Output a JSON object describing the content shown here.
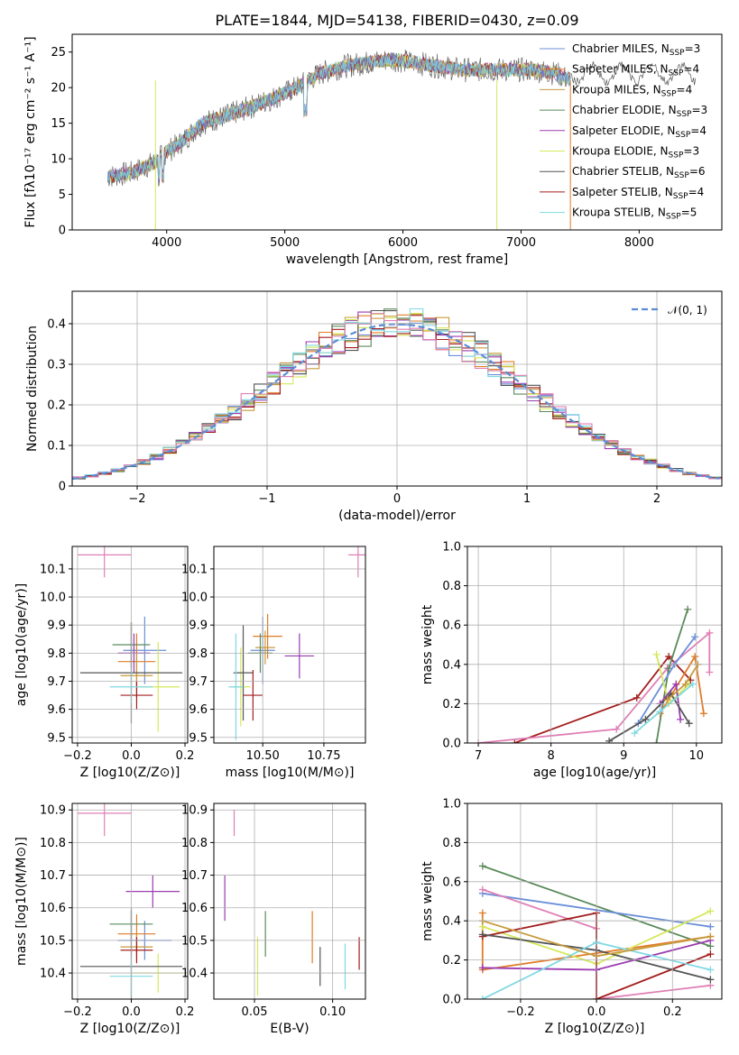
{
  "figure_title": "PLATE=1844, MJD=54138, FIBERID=0430, z=0.09",
  "colors": {
    "Chabrier MILES": "#6a8fd9",
    "Salpeter MILES": "#e07c27",
    "Kroupa MILES": "#c79a3b",
    "Chabrier ELODIE": "#5a8a5a",
    "Salpeter ELODIE": "#9b3bb0",
    "Kroupa ELODIE": "#d6e85a",
    "Chabrier STELIB": "#555555",
    "Salpeter STELIB": "#a31d1d",
    "Kroupa STELIB": "#7fd9e3",
    "pink": "#e07fb5",
    "normal": "#5b8dd6"
  },
  "chart_data": [
    {
      "id": "spectrum",
      "type": "line",
      "title": "PLATE=1844, MJD=54138, FIBERID=0430, z=0.09",
      "xlabel": "wavelength [Angstrom, rest frame]",
      "ylabel": "Flux [fλ10⁻¹⁷ erg cm⁻² s⁻¹ A⁻¹]",
      "xlim": [
        3200,
        8700
      ],
      "ylim": [
        0,
        27.5
      ],
      "xticks": [
        4000,
        5000,
        6000,
        7000,
        8000
      ],
      "yticks": [
        0,
        5,
        10,
        15,
        20,
        25
      ],
      "grid": false,
      "legend_position": "top-right",
      "legend": [
        {
          "name": "Chabrier MILES",
          "sub": "3"
        },
        {
          "name": "Salpeter MILES",
          "sub": "4"
        },
        {
          "name": "Kroupa MILES",
          "sub": "4"
        },
        {
          "name": "Chabrier ELODIE",
          "sub": "3"
        },
        {
          "name": "Salpeter ELODIE",
          "sub": "4"
        },
        {
          "name": "Kroupa ELODIE",
          "sub": "3"
        },
        {
          "name": "Chabrier STELIB",
          "sub": "6"
        },
        {
          "name": "Salpeter STELIB",
          "sub": "4"
        },
        {
          "name": "Kroupa STELIB",
          "sub": "5"
        }
      ],
      "continuum": {
        "x": [
          3500,
          3700,
          3900,
          4000,
          4100,
          4200,
          4300,
          4500,
          4700,
          4900,
          5100,
          5300,
          5500,
          5700,
          5900,
          6100,
          6300,
          6500,
          6700,
          6900,
          7100,
          7300,
          7420
        ],
        "y": [
          7.5,
          8.0,
          9.5,
          11.0,
          12.0,
          13.5,
          15.0,
          16.0,
          17.2,
          18.5,
          20.0,
          22.0,
          23.0,
          23.5,
          24.0,
          23.5,
          23.0,
          22.5,
          22.5,
          22.5,
          22.5,
          22.0,
          21.0
        ]
      }
    },
    {
      "id": "residuals",
      "type": "histogram",
      "xlabel": "(data-model)/error",
      "ylabel": "Normed distribution",
      "xlim": [
        -2.5,
        2.5
      ],
      "ylim": [
        0,
        0.48
      ],
      "xticks": [
        -2,
        -1,
        0,
        1,
        2
      ],
      "yticks": [
        0.0,
        0.1,
        0.2,
        0.3,
        0.4
      ],
      "grid": true,
      "bin_width": 0.1,
      "legend": "𝒩(0, 1)",
      "legend_position": "top-right"
    },
    {
      "id": "age-vs-Z",
      "type": "scatter",
      "xlabel": "Z [log10(Z/Z⊙)]",
      "ylabel": "age  [log10(age/yr)]",
      "xlim": [
        -0.22,
        0.21
      ],
      "ylim": [
        9.48,
        10.18
      ],
      "xticks": [
        -0.2,
        0.0,
        0.2
      ],
      "yticks": [
        9.5,
        9.6,
        9.7,
        9.8,
        9.9,
        10.0,
        10.1
      ],
      "grid": true,
      "points": [
        {
          "series": "Chabrier MILES",
          "x": 0.05,
          "y": 9.81,
          "xerr": 0.08,
          "yerr": 0.12
        },
        {
          "series": "Salpeter MILES",
          "x": 0.02,
          "y": 9.77,
          "xerr": 0.07,
          "yerr": 0.1
        },
        {
          "series": "Kroupa MILES",
          "x": 0.02,
          "y": 9.72,
          "xerr": 0.06,
          "yerr": 0.08
        },
        {
          "series": "Chabrier ELODIE",
          "x": 0.0,
          "y": 9.83,
          "xerr": 0.07,
          "yerr": 0.08
        },
        {
          "series": "Salpeter ELODIE",
          "x": 0.01,
          "y": 9.8,
          "xerr": 0.06,
          "yerr": 0.07
        },
        {
          "series": "Kroupa ELODIE",
          "x": 0.1,
          "y": 9.68,
          "xerr": 0.08,
          "yerr": 0.16
        },
        {
          "series": "Chabrier STELIB",
          "x": 0.0,
          "y": 9.73,
          "xerr": 0.19,
          "yerr": 0.18
        },
        {
          "series": "Salpeter STELIB",
          "x": 0.02,
          "y": 9.65,
          "xerr": 0.06,
          "yerr": 0.05
        },
        {
          "series": "Kroupa STELIB",
          "x": 0.0,
          "y": 9.68,
          "xerr": 0.08,
          "yerr": 0.06
        },
        {
          "series": "pink",
          "x": -0.1,
          "y": 10.15,
          "xerr": 0.1,
          "yerr": 0.08
        }
      ]
    },
    {
      "id": "age-vs-mass",
      "type": "scatter",
      "xlabel": "mass [log10(M/M⊙)]",
      "ylabel": "",
      "xlim": [
        10.3,
        10.92
      ],
      "ylim": [
        9.48,
        10.18
      ],
      "xticks": [
        10.5,
        10.75
      ],
      "yticks": [
        9.5,
        9.6,
        9.7,
        9.8,
        9.9,
        10.0,
        10.1
      ],
      "grid": true,
      "points": [
        {
          "series": "Chabrier MILES",
          "x": 10.5,
          "y": 9.81,
          "xerr": 0.05,
          "yerr": 0.12
        },
        {
          "series": "Salpeter MILES",
          "x": 10.52,
          "y": 9.86,
          "xerr": 0.06,
          "yerr": 0.08
        },
        {
          "series": "Kroupa MILES",
          "x": 10.51,
          "y": 9.82,
          "xerr": 0.04,
          "yerr": 0.06
        },
        {
          "series": "Chabrier ELODIE",
          "x": 10.49,
          "y": 9.8,
          "xerr": 0.05,
          "yerr": 0.07
        },
        {
          "series": "Salpeter ELODIE",
          "x": 10.65,
          "y": 9.79,
          "xerr": 0.06,
          "yerr": 0.08
        },
        {
          "series": "Kroupa ELODIE",
          "x": 10.41,
          "y": 9.68,
          "xerr": 0.04,
          "yerr": 0.14
        },
        {
          "series": "Chabrier STELIB",
          "x": 10.42,
          "y": 9.73,
          "xerr": 0.04,
          "yerr": 0.17
        },
        {
          "series": "Salpeter STELIB",
          "x": 10.46,
          "y": 9.65,
          "xerr": 0.04,
          "yerr": 0.09
        },
        {
          "series": "Kroupa STELIB",
          "x": 10.39,
          "y": 9.68,
          "xerr": 0.03,
          "yerr": 0.19
        },
        {
          "series": "pink",
          "x": 10.89,
          "y": 10.15,
          "xerr": 0.04,
          "yerr": 0.08
        }
      ]
    },
    {
      "id": "weight-vs-age",
      "type": "line",
      "xlabel": "age  [log10(age/yr)]",
      "ylabel": "mass weight",
      "xlim": [
        6.85,
        10.35
      ],
      "ylim": [
        0,
        1.0
      ],
      "xticks": [
        7,
        8,
        9,
        10
      ],
      "yticks": [
        0.0,
        0.2,
        0.4,
        0.6,
        0.8,
        1.0
      ],
      "grid": true,
      "series": [
        {
          "name": "Salpeter STELIB",
          "x": [
            7.5,
            9.18,
            9.62,
            9.92
          ],
          "y": [
            0.0,
            0.23,
            0.44,
            0.32
          ]
        },
        {
          "name": "pink",
          "x": [
            7.0,
            8.9,
            9.6,
            10.18,
            10.18
          ],
          "y": [
            0.0,
            0.07,
            0.38,
            0.56,
            0.36
          ]
        },
        {
          "name": "Chabrier ELODIE",
          "x": [
            9.45,
            9.62,
            9.88
          ],
          "y": [
            0.0,
            0.38,
            0.68
          ]
        },
        {
          "name": "Chabrier MILES",
          "x": [
            9.2,
            9.7,
            9.98
          ],
          "y": [
            0.1,
            0.4,
            0.54
          ]
        },
        {
          "name": "Salpeter MILES",
          "x": [
            9.5,
            9.98,
            10.1
          ],
          "y": [
            0.15,
            0.44,
            0.15
          ]
        },
        {
          "name": "Kroupa ELODIE",
          "x": [
            9.45,
            9.62,
            9.9
          ],
          "y": [
            0.45,
            0.2,
            0.3
          ]
        },
        {
          "name": "Salpeter ELODIE",
          "x": [
            9.5,
            9.72,
            9.78
          ],
          "y": [
            0.2,
            0.3,
            0.12
          ]
        },
        {
          "name": "Chabrier STELIB",
          "x": [
            8.8,
            9.3,
            9.65,
            9.9
          ],
          "y": [
            0.01,
            0.12,
            0.25,
            0.1
          ]
        },
        {
          "name": "Kroupa STELIB",
          "x": [
            9.15,
            9.5,
            9.95
          ],
          "y": [
            0.05,
            0.16,
            0.3
          ]
        },
        {
          "name": "Kroupa MILES",
          "x": [
            9.6,
            9.85,
            10.02
          ],
          "y": [
            0.22,
            0.3,
            0.4
          ]
        }
      ]
    },
    {
      "id": "mass-vs-Z",
      "type": "scatter",
      "xlabel": "Z [log10(Z/Z⊙)]",
      "ylabel": "mass [log10(M/M⊙)]",
      "xlim": [
        -0.22,
        0.21
      ],
      "ylim": [
        10.32,
        10.92
      ],
      "xticks": [
        -0.2,
        0.0,
        0.2
      ],
      "yticks": [
        10.4,
        10.5,
        10.6,
        10.7,
        10.8,
        10.9
      ],
      "grid": true,
      "points": [
        {
          "series": "Chabrier MILES",
          "x": 0.05,
          "y": 10.5,
          "xerr": 0.1,
          "yerr": 0.06
        },
        {
          "series": "Salpeter MILES",
          "x": 0.02,
          "y": 10.52,
          "xerr": 0.07,
          "yerr": 0.06
        },
        {
          "series": "Kroupa MILES",
          "x": 0.02,
          "y": 10.48,
          "xerr": 0.06,
          "yerr": 0.04
        },
        {
          "series": "Chabrier ELODIE",
          "x": 0.0,
          "y": 10.55,
          "xerr": 0.08,
          "yerr": 0.05
        },
        {
          "series": "Salpeter ELODIE",
          "x": 0.08,
          "y": 10.65,
          "xerr": 0.1,
          "yerr": 0.05
        },
        {
          "series": "Kroupa ELODIE",
          "x": 0.1,
          "y": 10.4,
          "xerr": 0.1,
          "yerr": 0.06
        },
        {
          "series": "Chabrier STELIB",
          "x": 0.0,
          "y": 10.42,
          "xerr": 0.19,
          "yerr": 0.17
        },
        {
          "series": "Salpeter STELIB",
          "x": 0.02,
          "y": 10.47,
          "xerr": 0.06,
          "yerr": 0.04
        },
        {
          "series": "Kroupa STELIB",
          "x": 0.0,
          "y": 10.39,
          "xerr": 0.08,
          "yerr": 0.06
        },
        {
          "series": "pink",
          "x": -0.1,
          "y": 10.89,
          "xerr": 0.1,
          "yerr": 0.07
        }
      ]
    },
    {
      "id": "mass-vs-EBV",
      "type": "scatter",
      "xlabel": "E(B-V)",
      "ylabel": "",
      "xlim": [
        0.024,
        0.121
      ],
      "ylim": [
        10.32,
        10.92
      ],
      "xticks": [
        0.05,
        0.1
      ],
      "yticks": [
        10.4,
        10.5,
        10.6,
        10.7,
        10.8,
        10.9
      ],
      "grid": true,
      "points": [
        {
          "series": "pink",
          "x": 0.037,
          "y": 10.86,
          "xerr": 0.0,
          "yerr": 0.04
        },
        {
          "series": "Salpeter ELODIE",
          "x": 0.031,
          "y": 10.63,
          "xerr": 0.0,
          "yerr": 0.07
        },
        {
          "series": "Chabrier ELODIE",
          "x": 0.057,
          "y": 10.52,
          "xerr": 0.0,
          "yerr": 0.07
        },
        {
          "series": "Kroupa ELODIE",
          "x": 0.052,
          "y": 10.42,
          "xerr": 0.0,
          "yerr": 0.09
        },
        {
          "series": "Salpeter MILES",
          "x": 0.087,
          "y": 10.51,
          "xerr": 0.0,
          "yerr": 0.08
        },
        {
          "series": "Chabrier STELIB",
          "x": 0.092,
          "y": 10.42,
          "xerr": 0.0,
          "yerr": 0.06
        },
        {
          "series": "Kroupa STELIB",
          "x": 0.108,
          "y": 10.42,
          "xerr": 0.0,
          "yerr": 0.07
        },
        {
          "series": "Salpeter STELIB",
          "x": 0.117,
          "y": 10.46,
          "xerr": 0.0,
          "yerr": 0.05
        }
      ]
    },
    {
      "id": "weight-vs-Z",
      "type": "line",
      "xlabel": "Z [log10(Z/Z⊙)]",
      "ylabel": "mass weight",
      "xlim": [
        -0.34,
        0.33
      ],
      "ylim": [
        0,
        1.0
      ],
      "xticks": [
        -0.2,
        0.0,
        0.2
      ],
      "yticks": [
        0.0,
        0.2,
        0.4,
        0.6,
        0.8,
        1.0
      ],
      "grid": true,
      "series": [
        {
          "name": "Chabrier ELODIE",
          "x": [
            -0.3,
            0.3
          ],
          "y": [
            0.68,
            0.27
          ]
        },
        {
          "name": "Chabrier MILES",
          "x": [
            -0.3,
            0.3
          ],
          "y": [
            0.54,
            0.37
          ]
        },
        {
          "name": "pink",
          "x": [
            -0.3,
            0.0,
            0.0,
            0.3
          ],
          "y": [
            0.56,
            0.36,
            0.0,
            0.07
          ]
        },
        {
          "name": "Salpeter MILES",
          "x": [
            -0.3,
            -0.3,
            0.3
          ],
          "y": [
            0.44,
            0.15,
            0.32
          ]
        },
        {
          "name": "Kroupa ELODIE",
          "x": [
            -0.3,
            0.0,
            0.3
          ],
          "y": [
            0.37,
            0.18,
            0.45
          ]
        },
        {
          "name": "Salpeter STELIB",
          "x": [
            -0.3,
            0.0,
            0.0,
            0.3
          ],
          "y": [
            0.32,
            0.44,
            0.0,
            0.23
          ]
        },
        {
          "name": "Chabrier STELIB",
          "x": [
            -0.3,
            0.0,
            0.3
          ],
          "y": [
            0.33,
            0.25,
            0.1
          ]
        },
        {
          "name": "Salpeter ELODIE",
          "x": [
            -0.3,
            0.0,
            0.3
          ],
          "y": [
            0.16,
            0.15,
            0.3
          ]
        },
        {
          "name": "Kroupa STELIB",
          "x": [
            -0.3,
            0.0,
            0.3
          ],
          "y": [
            0.0,
            0.29,
            0.15
          ]
        },
        {
          "name": "Kroupa MILES",
          "x": [
            -0.3,
            0.0,
            0.3
          ],
          "y": [
            0.4,
            0.22,
            0.32
          ]
        }
      ]
    }
  ]
}
